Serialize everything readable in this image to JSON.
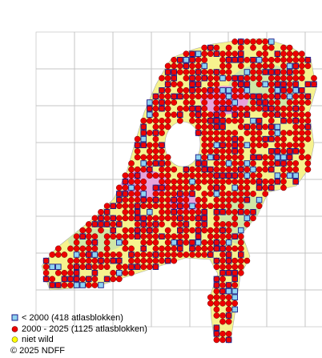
{
  "legend": [
    {
      "label": "< 2000   (418 atlasblokken)"
    },
    {
      "label": "2000 - 2025 (1125 atlasblokken)"
    },
    {
      "label": "niet wild"
    }
  ],
  "copyright": "© 2025 NDFF"
}
